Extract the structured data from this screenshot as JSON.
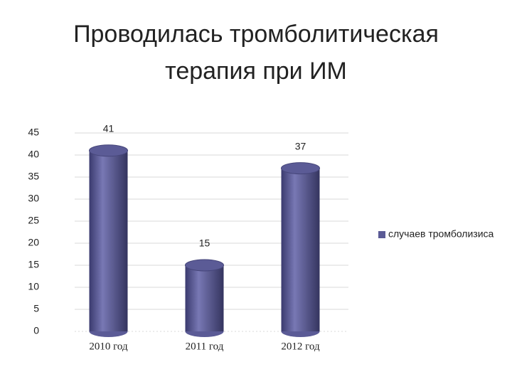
{
  "chart_data": {
    "type": "bar",
    "title": "Проводилась тромболитическая терапия при ИМ",
    "categories": [
      "2010 год",
      "2011 год",
      "2012 год"
    ],
    "series": [
      {
        "name": "случаев тромболизиса",
        "color": "#5b5b96",
        "values": [
          41,
          15,
          37
        ]
      }
    ],
    "ylim": [
      0,
      45
    ],
    "yticks": [
      0,
      5,
      10,
      15,
      20,
      25,
      30,
      35,
      40,
      45
    ],
    "grid": true,
    "legend": "right"
  }
}
